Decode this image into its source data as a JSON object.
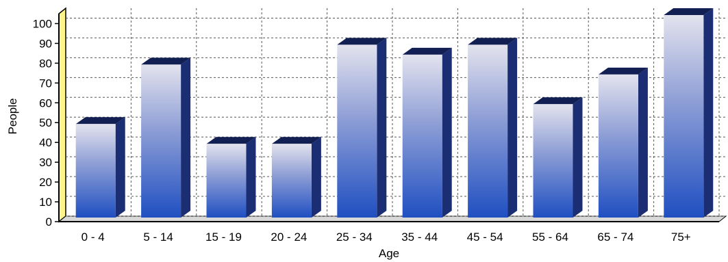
{
  "chart_data": {
    "type": "bar",
    "title": "",
    "xlabel": "Age",
    "ylabel": "People",
    "categories": [
      "0 - 4",
      "5 - 14",
      "15 - 19",
      "20 - 24",
      "25 - 34",
      "35 - 44",
      "45 - 54",
      "55 - 64",
      "65 - 74",
      "75+"
    ],
    "values": [
      50,
      80,
      40,
      40,
      90,
      85,
      90,
      60,
      75,
      105
    ],
    "ylim": [
      0,
      105
    ],
    "yticks": [
      0,
      10,
      20,
      30,
      40,
      50,
      60,
      70,
      80,
      90,
      100
    ],
    "grid": true,
    "legend": "none",
    "style": "3d-gradient",
    "colors": {
      "bar_top": "#e3e3ee",
      "bar_mid": "#8f9fd6",
      "bar_bottom": "#1f4fc1",
      "bar_side": "#1c2e73",
      "bar_cap": "#121f52",
      "left_wall": "#fdf48c",
      "grid": "#555555"
    }
  }
}
